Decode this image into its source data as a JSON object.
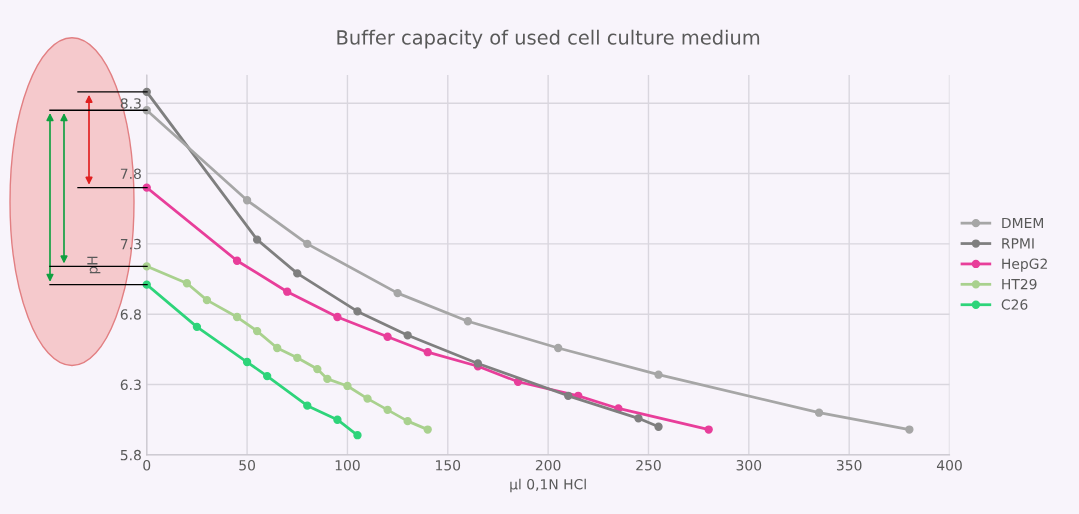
{
  "chart_data": {
    "type": "line",
    "title": "Buffer capacity of used cell culture medium",
    "xlabel": "µl 0,1N HCl",
    "ylabel": "pH",
    "xlim": [
      0,
      400
    ],
    "xticks": [
      0,
      50,
      100,
      150,
      200,
      250,
      300,
      350,
      400
    ],
    "ylim": [
      5.8,
      8.5
    ],
    "yticks": [
      5.8,
      6.3,
      6.8,
      7.3,
      7.8,
      8.3
    ],
    "grid": true,
    "legend": "right",
    "marker": "circle",
    "line_style": "solid",
    "series": [
      {
        "name": "DMEM",
        "color": "#a6a6a6",
        "x": [
          0,
          50,
          80,
          125,
          160,
          205,
          255,
          335,
          380
        ],
        "values": [
          8.25,
          7.61,
          7.3,
          6.95,
          6.75,
          6.56,
          6.37,
          6.1,
          5.98
        ]
      },
      {
        "name": "RPMI",
        "color": "#7f7f7f",
        "x": [
          0,
          55,
          75,
          105,
          130,
          165,
          210,
          245,
          255
        ],
        "values": [
          8.38,
          7.33,
          7.09,
          6.82,
          6.65,
          6.45,
          6.22,
          6.06,
          6.0
        ]
      },
      {
        "name": "HepG2",
        "color": "#e83e9a",
        "x": [
          0,
          45,
          70,
          95,
          120,
          140,
          165,
          185,
          215,
          235,
          280
        ],
        "values": [
          7.7,
          7.18,
          6.96,
          6.78,
          6.64,
          6.53,
          6.43,
          6.32,
          6.22,
          6.13,
          5.98
        ]
      },
      {
        "name": "HT29",
        "color": "#a9d18e",
        "x": [
          0,
          20,
          30,
          45,
          55,
          65,
          75,
          85,
          90,
          100,
          110,
          120,
          130,
          140
        ],
        "values": [
          7.14,
          7.02,
          6.9,
          6.78,
          6.68,
          6.56,
          6.49,
          6.41,
          6.34,
          6.29,
          6.2,
          6.12,
          6.04,
          5.98
        ]
      },
      {
        "name": "C26",
        "color": "#2ed47a",
        "x": [
          0,
          25,
          50,
          60,
          80,
          95,
          105
        ],
        "values": [
          7.01,
          6.71,
          6.46,
          6.36,
          6.15,
          6.05,
          5.94
        ]
      }
    ]
  }
}
